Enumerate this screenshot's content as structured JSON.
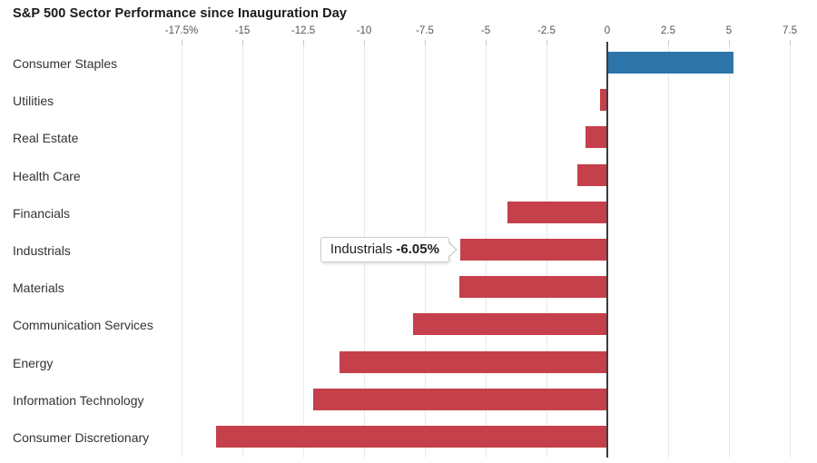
{
  "title": "S&P 500 Sector Performance since Inauguration Day",
  "tooltip": {
    "label": "Industrials",
    "value": "-6.05%"
  },
  "axis": {
    "tick_labels": [
      "-17.5%",
      "-15",
      "-12.5",
      "-10",
      "-7.5",
      "-5",
      "-2.5",
      "0",
      "2.5",
      "5",
      "7.5"
    ],
    "tick_values": [
      -17.5,
      -15,
      -12.5,
      -10,
      -7.5,
      -5,
      -2.5,
      0,
      2.5,
      5,
      7.5
    ]
  },
  "colors": {
    "positive_bar": "#2d74a8",
    "negative_bar": "#c5404a",
    "gridline": "#e9e9e9",
    "zero_line": "#3d3d3d",
    "title_text": "#1a1a1a",
    "category_text": "#333333",
    "axis_text": "#555555"
  },
  "chart_data": {
    "type": "bar",
    "orientation": "horizontal",
    "title": "S&P 500 Sector Performance since Inauguration Day",
    "unit": "%",
    "xlim": [
      -17.5,
      7.5
    ],
    "grid": true,
    "categories": [
      "Consumer Staples",
      "Utilities",
      "Real Estate",
      "Health Care",
      "Financials",
      "Industrials",
      "Materials",
      "Communication Services",
      "Energy",
      "Information Technology",
      "Consumer Discretionary"
    ],
    "values": [
      5.2,
      -0.3,
      -0.9,
      -1.25,
      -4.1,
      -6.05,
      -6.1,
      -8.0,
      -11.0,
      -12.1,
      -16.1
    ],
    "annotation": "Industrials -6.05%",
    "annotation_category": "Industrials"
  }
}
